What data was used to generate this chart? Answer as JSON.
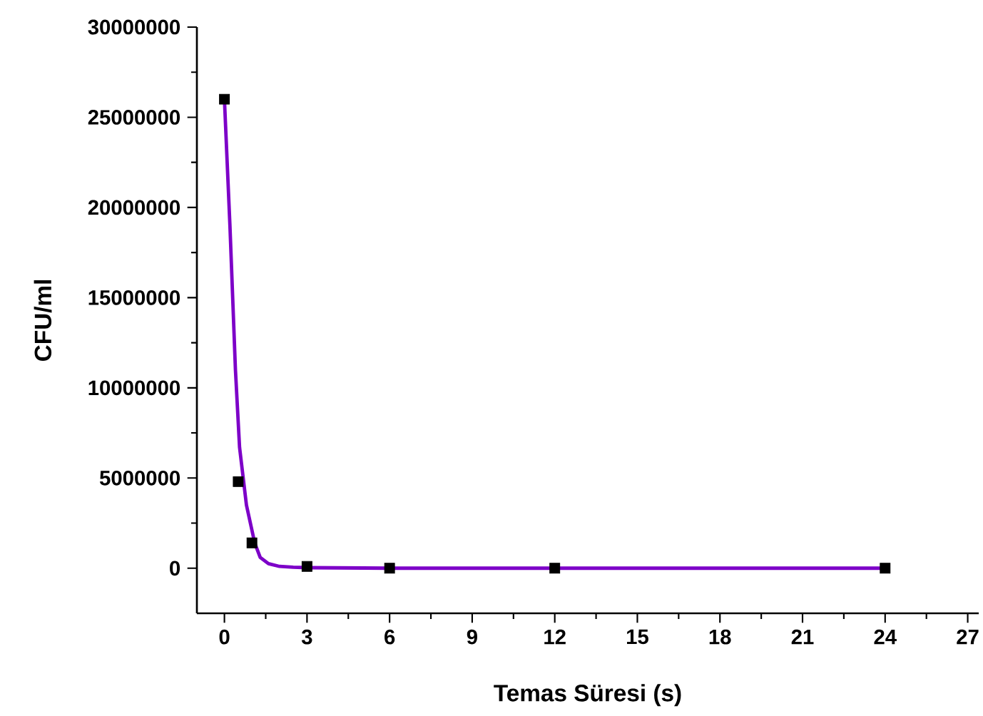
{
  "chart_data": {
    "type": "scatter",
    "xlabel": "Temas Süresi (s)",
    "ylabel": "CFU/ml",
    "xlim": [
      -1,
      27.4
    ],
    "ylim": [
      -2500000,
      30000000
    ],
    "xticks": [
      0,
      3,
      6,
      9,
      12,
      15,
      18,
      21,
      24,
      27
    ],
    "yticks": [
      0,
      5000000,
      10000000,
      15000000,
      20000000,
      25000000,
      30000000
    ],
    "series": [
      {
        "color": "#000000",
        "marker": "square",
        "x": [
          0,
          0.5,
          1,
          3,
          6,
          12,
          24
        ],
        "values": [
          26000000,
          4800000,
          1400000,
          100000,
          0,
          0,
          0
        ]
      },
      {
        "type": "line",
        "color": "#7d00c8",
        "marker": "none",
        "line_style": "solid",
        "x": [
          0,
          0.2,
          0.4,
          0.55,
          0.8,
          1.1,
          1.3,
          1.6,
          2,
          2.5,
          3,
          6,
          12,
          24
        ],
        "values": [
          26000000,
          19000000,
          11000000,
          6700000,
          3500000,
          1400000,
          600000,
          250000,
          100000,
          50000,
          30000,
          0,
          0,
          0
        ]
      }
    ]
  }
}
